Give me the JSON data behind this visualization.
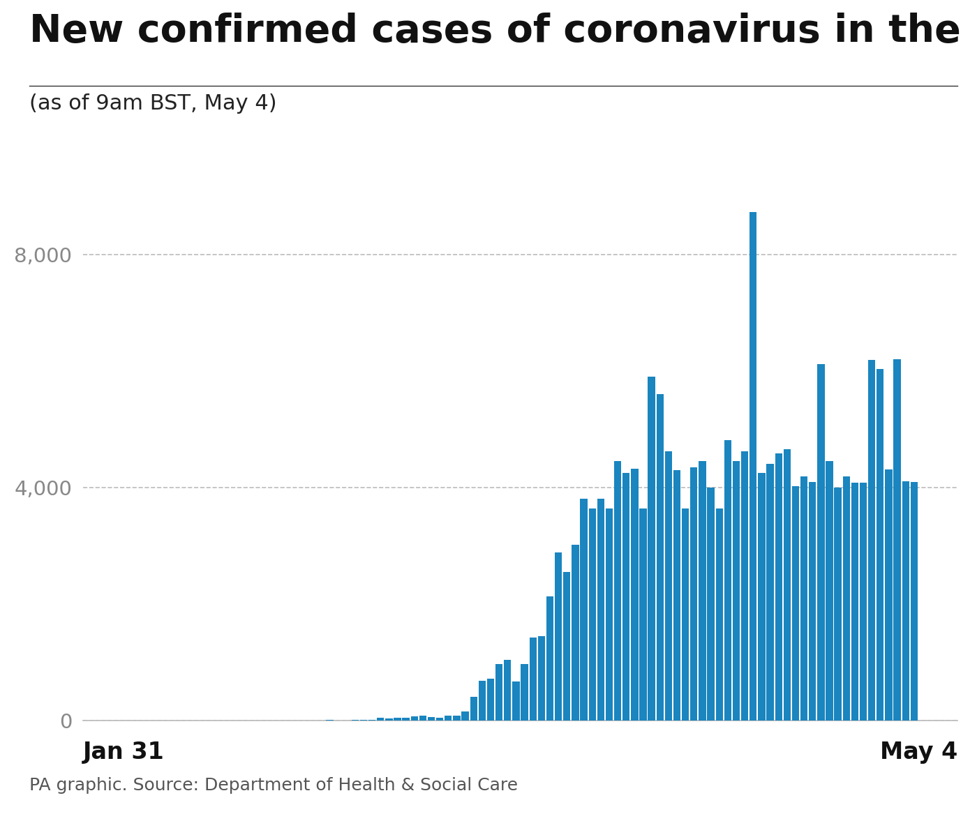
{
  "title": "New confirmed cases of coronavirus in the UK",
  "subtitle": "(as of 9am BST, May 4)",
  "source": "PA graphic. Source: Department of Health & Social Care",
  "xlabel_left": "Jan 31",
  "xlabel_right": "May 4",
  "bar_color": "#1a85bf",
  "background_color": "#ffffff",
  "yticks": [
    0,
    4000,
    8000
  ],
  "ylim": [
    0,
    9500
  ],
  "values": [
    2,
    0,
    1,
    0,
    0,
    0,
    0,
    0,
    0,
    3,
    0,
    1,
    0,
    0,
    2,
    1,
    0,
    0,
    0,
    0,
    0,
    3,
    0,
    2,
    5,
    3,
    2,
    5,
    9,
    14,
    47,
    33,
    48,
    45,
    69,
    77,
    60,
    43,
    87,
    76,
    152,
    407,
    676,
    714,
    967,
    1035,
    665,
    967,
    1427,
    1452,
    2129,
    2885,
    2546,
    3009,
    3802,
    3634,
    3802,
    3635,
    4450,
    4244,
    4324,
    3634,
    5903,
    5599,
    4617,
    4301,
    3634,
    4344,
    4451,
    3996,
    3634,
    4806,
    4451,
    4615,
    8719,
    4251,
    4406,
    4583,
    4649,
    4014,
    4189,
    4094,
    6111,
    4451,
    3996,
    4188,
    4077,
    4076,
    6182,
    6032,
    4309,
    6201,
    4106,
    4094
  ]
}
